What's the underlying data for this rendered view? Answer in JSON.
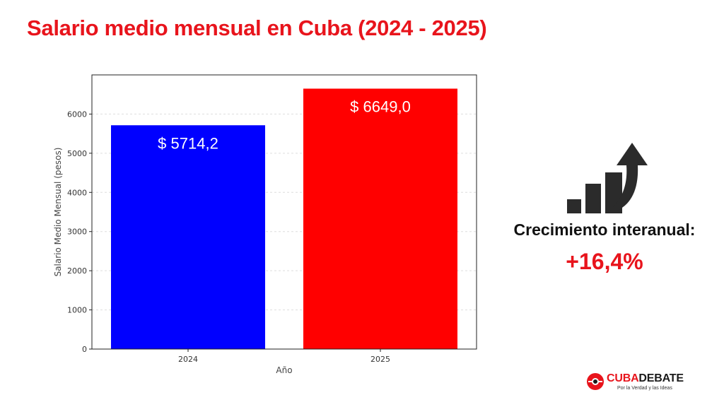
{
  "title": "Salario medio mensual en Cuba (2024 - 2025)",
  "colors": {
    "accent": "#e8141c",
    "bar_2024": "#0000ff",
    "bar_2025": "#ff0000",
    "icon": "#2b2b2b"
  },
  "chart_data": {
    "type": "bar",
    "categories": [
      "2024",
      "2025"
    ],
    "values": [
      5714.2,
      6649.0
    ],
    "data_labels": [
      "$ 5714,2",
      "$ 6649,0"
    ],
    "bar_colors": [
      "#0000ff",
      "#ff0000"
    ],
    "xlabel": "Año",
    "ylabel": "Salario Medio Mensual (pesos)",
    "ylim": [
      0,
      7000
    ],
    "yticks": [
      0,
      1000,
      2000,
      3000,
      4000,
      5000,
      6000
    ],
    "grid": "horizontal-dashed"
  },
  "growth": {
    "icon": "rising-bars-arrow-icon",
    "label": "Crecimiento interanual:",
    "value": "+16,4%"
  },
  "logo": {
    "part1": "CUBA",
    "part2": "DEBATE",
    "tagline": "Por la Verdad y las Ideas"
  }
}
